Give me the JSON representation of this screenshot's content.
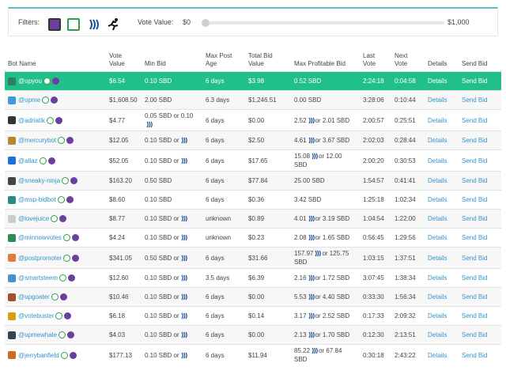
{
  "filters": {
    "label": "Filters:",
    "vote_value_label": "Vote Value:",
    "min": "$0",
    "max": "$1,000"
  },
  "table": {
    "columns": [
      "Bot Name",
      "Vote Value",
      "Min Bid",
      "Max Post Age",
      "Total Bid Value",
      "Max Profitable Bid",
      "Last Vote",
      "Next Vote",
      "Details",
      "Send Bid"
    ],
    "details_label": "Details",
    "send_bid_label": "Send Bid",
    "rows": [
      [
        "@upyou",
        "$6.54",
        "0.10 SBD",
        "6 days",
        "$3.98",
        "0.52 SBD",
        "2:24:18",
        "0:04:58"
      ],
      [
        "@upme",
        "$1,608.50",
        "2.00 SBD",
        "6.3 days",
        "$1,246.51",
        "0.00 SBD",
        "3:28:06",
        "0:10:44"
      ],
      [
        "@adriatik",
        "$4.77",
        {
          "before": "0.05 SBD or 0.10"
        },
        "6 days",
        "$0.00",
        {
          "before": "2.52",
          "after": "or 2.01 SBD"
        },
        "2:00:57",
        "0:25:51"
      ],
      [
        "@mercurybot",
        "$12.05",
        {
          "before": "0.10 SBD or"
        },
        "6 days",
        "$2.50",
        {
          "before": "4.61",
          "after": "or 3.67 SBD"
        },
        "2:02:03",
        "0:28:44"
      ],
      [
        "@allaz",
        "$52.05",
        {
          "before": "0.10 SBD or"
        },
        "6 days",
        "$17.65",
        {
          "before": "15.08",
          "after": "or 12.00 SBD"
        },
        "2:00:20",
        "0:30:53"
      ],
      [
        "@sneaky-ninja",
        "$163.20",
        "0.50 SBD",
        "6 days",
        "$77.84",
        "25.00 SBD",
        "1:54:57",
        "0:41:41"
      ],
      [
        "@msp-bidbot",
        "$8.60",
        "0.10 SBD",
        "6 days",
        "$0.36",
        "3.42 SBD",
        "1:25:18",
        "1:02:34"
      ],
      [
        "@lovejuice",
        "$8.77",
        {
          "before": "0.10 SBD or"
        },
        "unknown",
        "$0.89",
        {
          "before": "4.01",
          "after": "or 3.19 SBD"
        },
        "1:04:54",
        "1:22:00"
      ],
      [
        "@minnowvotes",
        "$4.24",
        {
          "before": "0.10 SBD or"
        },
        "unknown",
        "$0.23",
        {
          "before": "2.08",
          "after": "or 1.65 SBD"
        },
        "0:56:45",
        "1:29:56"
      ],
      [
        "@postpromoter",
        "$341.05",
        {
          "before": "0.50 SBD or"
        },
        "6 days",
        "$31.66",
        {
          "before": "157.97",
          "after": "or 125.75 SBD"
        },
        "1:03:15",
        "1:37:51"
      ],
      [
        "@smartsteem",
        "$12.60",
        {
          "before": "0.10 SBD or"
        },
        "3.5 days",
        "$6.39",
        {
          "before": "2.16",
          "after": "or 1.72 SBD"
        },
        "3:07:45",
        "1:38:34"
      ],
      [
        "@upgoater",
        "$10.46",
        {
          "before": "0.10 SBD or"
        },
        "6 days",
        "$0.00",
        {
          "before": "5.53",
          "after": "or 4.40 SBD"
        },
        "0:33:30",
        "1:56:34"
      ],
      [
        "@votebuster",
        "$6.18",
        {
          "before": "0.10 SBD or"
        },
        "6 days",
        "$0.14",
        {
          "before": "3.17",
          "after": "or 2.52 SBD"
        },
        "0:17:33",
        "2:09:32"
      ],
      [
        "@upmewhale",
        "$4.03",
        {
          "before": "0.10 SBD or"
        },
        "6 days",
        "$0.00",
        {
          "before": "2.13",
          "after": "or 1.70 SBD"
        },
        "0:12:30",
        "2:13:51"
      ],
      [
        "@jerrybanfield",
        "$177.13",
        {
          "before": "0.10 SBD or"
        },
        "6 days",
        "$11.94",
        {
          "before": "85.22",
          "after": "or 67.84 SBD"
        },
        "0:30:18",
        "2:43:22"
      ]
    ]
  }
}
